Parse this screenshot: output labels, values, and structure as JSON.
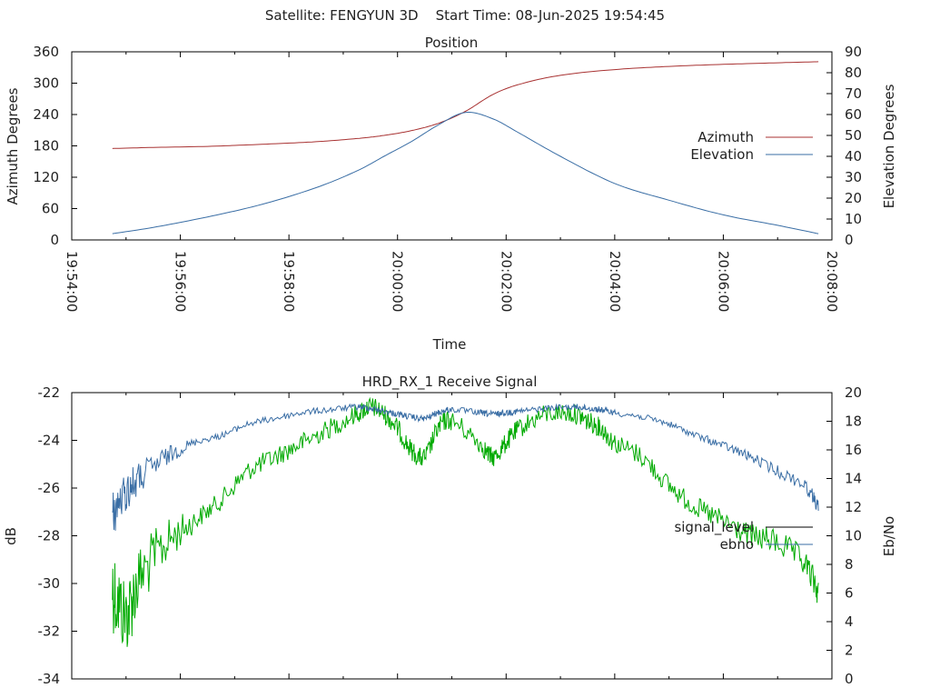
{
  "page_title": "Satellite: FENGYUN 3D    Start Time: 08-Jun-2025 19:54:45",
  "colors": {
    "azimuth": "#a83232",
    "elevation": "#3a6ea5",
    "signal_level": "#00aa00",
    "ebno": "#3a6ea5",
    "signal_legend_swatch": "#000000"
  },
  "chart_data": [
    {
      "type": "line",
      "title": "Position",
      "xlabel": "Time",
      "ylabel": "Azimuth Degrees",
      "y2label": "Elevation Degrees",
      "xlim": [
        "19:54:00",
        "20:08:00"
      ],
      "ylim": [
        0,
        360
      ],
      "y2lim": [
        0,
        90
      ],
      "x_ticks": [
        "19:54:00",
        "19:56:00",
        "19:58:00",
        "20:00:00",
        "20:02:00",
        "20:04:00",
        "20:06:00",
        "20:08:00"
      ],
      "y_ticks": [
        "0",
        "60",
        "120",
        "180",
        "240",
        "300",
        "360"
      ],
      "y2_ticks": [
        "0",
        "10",
        "20",
        "30",
        "40",
        "50",
        "60",
        "70",
        "80",
        "90"
      ],
      "legend_position": "right",
      "grid": false,
      "series": [
        {
          "name": "Azimuth",
          "axis": "left",
          "x": [
            "19:54:45",
            "19:55:30",
            "19:56:30",
            "19:57:30",
            "19:58:30",
            "19:59:15",
            "19:59:45",
            "20:00:15",
            "20:00:45",
            "20:01:15",
            "20:01:45",
            "20:02:15",
            "20:03:00",
            "20:04:00",
            "20:05:00",
            "20:06:00",
            "20:07:00",
            "20:07:45"
          ],
          "values": [
            175,
            177,
            179,
            183,
            188,
            194,
            200,
            209,
            223,
            246,
            278,
            298,
            315,
            326,
            332,
            336,
            339,
            341
          ]
        },
        {
          "name": "Elevation",
          "axis": "right",
          "x": [
            "19:54:45",
            "19:55:30",
            "19:56:30",
            "19:57:30",
            "19:58:30",
            "19:59:15",
            "19:59:45",
            "20:00:15",
            "20:00:45",
            "20:01:15",
            "20:01:45",
            "20:02:15",
            "20:03:00",
            "20:04:00",
            "20:05:00",
            "20:06:00",
            "20:07:00",
            "20:07:45"
          ],
          "values": [
            3,
            6,
            11,
            17,
            25,
            33,
            40,
            47,
            55,
            61,
            58,
            51,
            40,
            27,
            19,
            12,
            7,
            3
          ]
        }
      ]
    },
    {
      "type": "line",
      "title": "HRD_RX_1 Receive Signal",
      "ylabel": "dB",
      "y2label": "Eb/No",
      "xlim": [
        "19:54:00",
        "20:08:00"
      ],
      "ylim": [
        -34,
        -22
      ],
      "y2lim": [
        0,
        20
      ],
      "y_ticks": [
        "-34",
        "-32",
        "-30",
        "-28",
        "-26",
        "-24",
        "-22"
      ],
      "y2_ticks": [
        "0",
        "2",
        "4",
        "6",
        "8",
        "10",
        "12",
        "14",
        "16",
        "18",
        "20"
      ],
      "legend_position": "right",
      "grid": false,
      "series": [
        {
          "name": "signal_level",
          "axis": "right",
          "x": [
            "19:54:45",
            "19:55:00",
            "19:55:15",
            "19:55:45",
            "19:56:15",
            "19:56:45",
            "19:57:15",
            "19:57:45",
            "19:58:15",
            "19:58:45",
            "19:59:15",
            "19:59:30",
            "19:59:45",
            "20:00:00",
            "20:00:15",
            "20:00:30",
            "20:00:45",
            "20:01:00",
            "20:01:30",
            "20:01:45",
            "20:02:00",
            "20:02:15",
            "20:02:45",
            "20:03:15",
            "20:03:30",
            "20:03:45",
            "20:04:00",
            "20:04:30",
            "20:05:00",
            "20:05:30",
            "20:06:00",
            "20:06:30",
            "20:07:00",
            "20:07:30",
            "20:07:45"
          ],
          "values": [
            6.5,
            4.5,
            7.0,
            9.5,
            11.0,
            12.5,
            14.5,
            15.5,
            16.5,
            17.5,
            18.5,
            19.0,
            18.5,
            17.5,
            16.0,
            15.5,
            17.5,
            18.0,
            16.5,
            15.5,
            16.5,
            17.5,
            18.5,
            18.5,
            18.0,
            17.5,
            16.5,
            15.5,
            13.5,
            12.0,
            11.0,
            10.0,
            9.5,
            8.0,
            6.0
          ]
        },
        {
          "name": "ebno",
          "axis": "right",
          "x": [
            "19:54:45",
            "19:55:00",
            "19:55:15",
            "19:55:45",
            "19:56:15",
            "19:56:45",
            "19:57:15",
            "19:57:45",
            "19:58:15",
            "19:58:45",
            "19:59:15",
            "19:59:30",
            "19:59:45",
            "20:00:00",
            "20:00:15",
            "20:00:30",
            "20:00:45",
            "20:01:00",
            "20:01:30",
            "20:01:45",
            "20:02:00",
            "20:02:15",
            "20:02:45",
            "20:03:15",
            "20:03:30",
            "20:03:45",
            "20:04:00",
            "20:04:30",
            "20:05:00",
            "20:05:30",
            "20:06:00",
            "20:06:30",
            "20:07:00",
            "20:07:30",
            "20:07:45"
          ],
          "values": [
            11.5,
            13.0,
            14.0,
            15.5,
            16.5,
            17.0,
            17.8,
            18.2,
            18.6,
            18.8,
            19.0,
            18.9,
            18.7,
            18.5,
            18.3,
            18.2,
            18.6,
            18.8,
            18.6,
            18.5,
            18.6,
            18.7,
            18.9,
            19.0,
            18.9,
            18.8,
            18.6,
            18.3,
            17.8,
            17.0,
            16.3,
            15.5,
            14.5,
            13.5,
            12.0
          ]
        }
      ]
    }
  ]
}
